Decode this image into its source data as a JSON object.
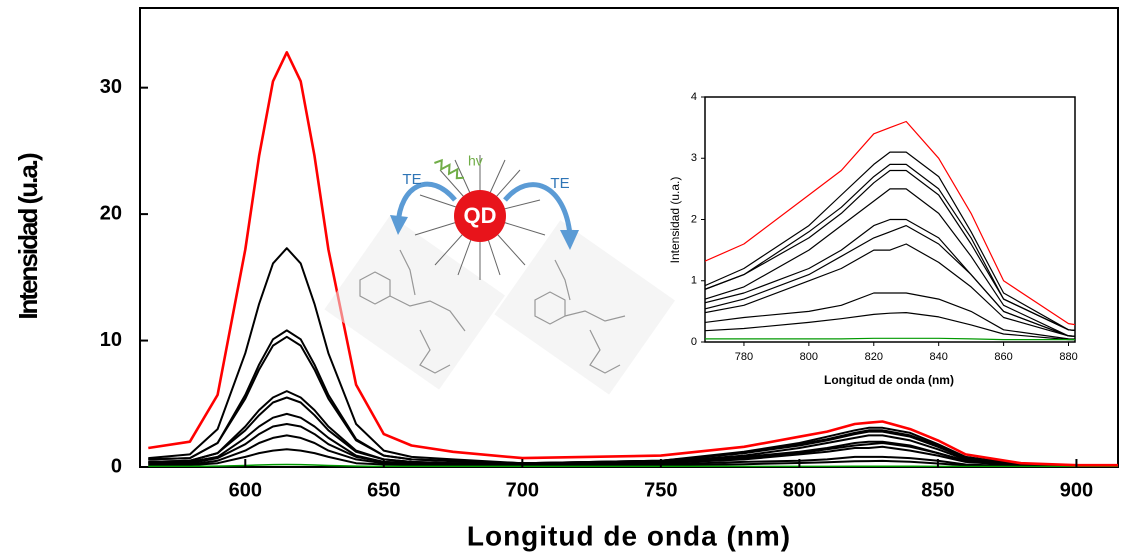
{
  "chart_data": {
    "type": "line",
    "xlabel": "Longitud de onda (nm)",
    "ylabel": "Intensidad (u.a.)",
    "xlim": [
      562,
      915
    ],
    "ylim": [
      0,
      36.3
    ],
    "xticks": [
      600,
      650,
      700,
      750,
      800,
      850,
      900
    ],
    "yticks": [
      0,
      10,
      20,
      30
    ],
    "x": [
      565,
      580,
      590,
      600,
      605,
      610,
      615,
      620,
      625,
      630,
      640,
      650,
      660,
      675,
      700,
      750,
      780,
      800,
      810,
      820,
      825,
      830,
      840,
      850,
      860,
      880,
      900,
      915
    ],
    "series": [
      {
        "color": "#ff0000",
        "values": [
          1.5,
          2.0,
          5.7,
          17.2,
          24.6,
          30.5,
          32.8,
          30.5,
          24.6,
          17.2,
          6.5,
          2.6,
          1.7,
          1.2,
          0.7,
          0.9,
          1.6,
          2.4,
          2.8,
          3.4,
          3.5,
          3.6,
          3.0,
          2.1,
          1.0,
          0.3,
          0.14,
          0.14
        ]
      },
      {
        "color": "#000000",
        "values": [
          0.7,
          1.0,
          3.0,
          9.0,
          12.9,
          16.1,
          17.3,
          16.1,
          12.9,
          9.0,
          3.4,
          1.3,
          0.8,
          0.6,
          0.3,
          0.5,
          1.2,
          1.9,
          2.4,
          2.9,
          3.1,
          3.1,
          2.7,
          1.8,
          0.8,
          0.2,
          0.1,
          0.1
        ]
      },
      {
        "color": "#000000",
        "values": [
          0.6,
          0.7,
          1.9,
          5.7,
          8.1,
          10.1,
          10.8,
          10.1,
          8.1,
          5.7,
          2.2,
          0.9,
          0.6,
          0.5,
          0.3,
          0.5,
          1.1,
          1.8,
          2.2,
          2.7,
          2.9,
          2.9,
          2.5,
          1.7,
          0.7,
          0.2,
          0.1,
          0.1
        ]
      },
      {
        "color": "#000000",
        "values": [
          0.6,
          0.7,
          1.9,
          5.4,
          7.7,
          9.6,
          10.3,
          9.6,
          7.7,
          5.4,
          2.1,
          0.9,
          0.6,
          0.45,
          0.3,
          0.5,
          1.1,
          1.7,
          2.1,
          2.6,
          2.8,
          2.8,
          2.4,
          1.6,
          0.7,
          0.2,
          0.1,
          0.1
        ]
      },
      {
        "color": "#000000",
        "values": [
          0.4,
          0.5,
          1.1,
          3.2,
          4.5,
          5.5,
          6.0,
          5.5,
          4.5,
          3.2,
          1.3,
          0.6,
          0.4,
          0.3,
          0.3,
          0.4,
          0.9,
          1.5,
          1.9,
          2.3,
          2.5,
          2.5,
          2.1,
          1.4,
          0.6,
          0.1,
          0.05,
          0.05
        ]
      },
      {
        "color": "#000000",
        "values": [
          0.4,
          0.5,
          1.1,
          2.9,
          4.1,
          5.1,
          5.5,
          5.1,
          4.1,
          2.9,
          1.2,
          0.6,
          0.4,
          0.3,
          0.3,
          0.4,
          0.8,
          1.2,
          1.5,
          1.9,
          2.0,
          2.0,
          1.7,
          1.1,
          0.5,
          0.1,
          0.05,
          0.05
        ]
      },
      {
        "color": "#000000",
        "values": [
          0.3,
          0.4,
          0.8,
          2.3,
          3.2,
          3.9,
          4.2,
          3.9,
          3.2,
          2.3,
          0.9,
          0.4,
          0.3,
          0.3,
          0.2,
          0.3,
          0.7,
          1.1,
          1.4,
          1.7,
          1.8,
          1.9,
          1.6,
          1.1,
          0.5,
          0.1,
          0.04,
          0.04
        ]
      },
      {
        "color": "#000000",
        "values": [
          0.3,
          0.3,
          0.7,
          1.8,
          2.6,
          3.2,
          3.4,
          3.2,
          2.6,
          1.8,
          0.8,
          0.4,
          0.3,
          0.3,
          0.2,
          0.3,
          0.6,
          1.0,
          1.2,
          1.5,
          1.5,
          1.6,
          1.3,
          0.9,
          0.4,
          0.1,
          0.04,
          0.04
        ]
      },
      {
        "color": "#000000",
        "values": [
          0.2,
          0.2,
          0.5,
          1.3,
          1.9,
          2.3,
          2.5,
          2.3,
          1.9,
          1.3,
          0.6,
          0.3,
          0.2,
          0.2,
          0.15,
          0.2,
          0.4,
          0.5,
          0.6,
          0.8,
          0.8,
          0.8,
          0.7,
          0.5,
          0.2,
          0.05,
          0.03,
          0.03
        ]
      },
      {
        "color": "#000000",
        "values": [
          0.13,
          0.15,
          0.3,
          0.8,
          1.1,
          1.3,
          1.4,
          1.3,
          1.1,
          0.8,
          0.3,
          0.2,
          0.14,
          0.12,
          0.1,
          0.13,
          0.22,
          0.32,
          0.38,
          0.45,
          0.47,
          0.48,
          0.41,
          0.28,
          0.13,
          0.04,
          0.02,
          0.02
        ]
      },
      {
        "color": "#009900",
        "values": [
          0.05,
          0.05,
          0.07,
          0.12,
          0.16,
          0.19,
          0.2,
          0.19,
          0.16,
          0.12,
          0.07,
          0.05,
          0.05,
          0.05,
          0.05,
          0.05,
          0.05,
          0.05,
          0.05,
          0.06,
          0.06,
          0.06,
          0.06,
          0.05,
          0.04,
          0.04,
          0.04,
          0.04
        ]
      }
    ],
    "inset": {
      "xlabel": "Longitud de onda (nm)",
      "ylabel": "Intensidad (u.a.)",
      "xlim": [
        768,
        882
      ],
      "ylim": [
        0,
        4
      ],
      "xticks": [
        780,
        800,
        820,
        840,
        860,
        880
      ],
      "yticks": [
        0,
        1,
        2,
        3,
        4
      ]
    },
    "annotations": {
      "photon": "hv",
      "transfer_left": "TE",
      "transfer_right": "TE",
      "particle": "QD"
    }
  }
}
